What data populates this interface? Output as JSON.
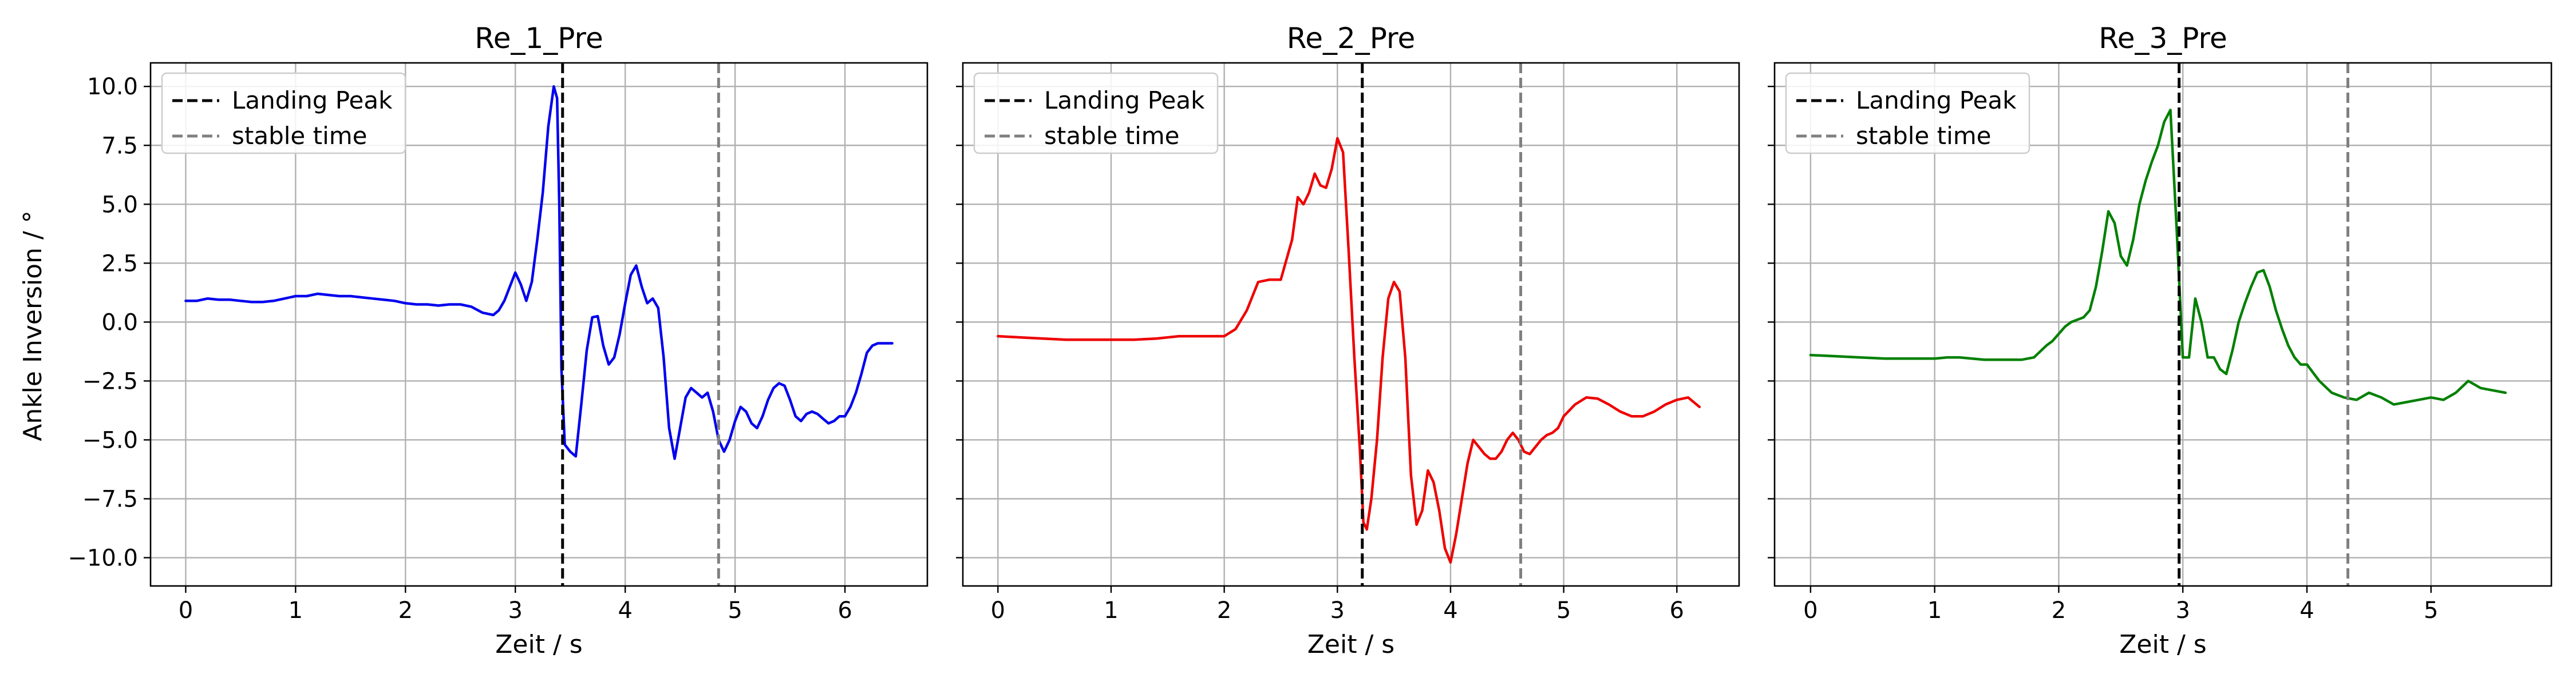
{
  "figure": {
    "shared_ylabel": "Ankle Inversion / °",
    "xlabel": "Zeit / s"
  },
  "legend": {
    "entries": [
      {
        "label": "Landing Peak",
        "color": "#000000",
        "style": "dashed"
      },
      {
        "label": "stable time",
        "color": "#808080",
        "style": "dashed"
      }
    ],
    "placement": "upper left"
  },
  "chart_data": [
    {
      "type": "line",
      "title": "Re_1_Pre",
      "xlabel": "Zeit / s",
      "ylabel": "Ankle Inversion / °",
      "xlim": [
        -0.32,
        6.75
      ],
      "ylim": [
        -11.2,
        11.0
      ],
      "xticks": [
        0,
        1,
        2,
        3,
        4,
        5,
        6
      ],
      "yticks": [
        -10.0,
        -7.5,
        -5.0,
        -2.5,
        0.0,
        2.5,
        5.0,
        7.5,
        10.0
      ],
      "ytick_labels": [
        "−10.0",
        "−7.5",
        "−5.0",
        "−2.5",
        "0.0",
        "2.5",
        "5.0",
        "7.5",
        "10.0"
      ],
      "grid": true,
      "series": [
        {
          "color": "#0000ee",
          "x": [
            0,
            0.1,
            0.2,
            0.3,
            0.4,
            0.5,
            0.6,
            0.7,
            0.8,
            0.9,
            1.0,
            1.1,
            1.2,
            1.3,
            1.4,
            1.5,
            1.6,
            1.7,
            1.8,
            1.9,
            2.0,
            2.1,
            2.2,
            2.3,
            2.4,
            2.5,
            2.6,
            2.7,
            2.8,
            2.85,
            2.9,
            2.95,
            3.0,
            3.05,
            3.1,
            3.15,
            3.2,
            3.25,
            3.3,
            3.35,
            3.38,
            3.4,
            3.42,
            3.45,
            3.5,
            3.55,
            3.6,
            3.65,
            3.7,
            3.75,
            3.8,
            3.85,
            3.9,
            3.95,
            4.0,
            4.05,
            4.1,
            4.15,
            4.2,
            4.25,
            4.3,
            4.35,
            4.4,
            4.45,
            4.5,
            4.55,
            4.6,
            4.65,
            4.7,
            4.75,
            4.8,
            4.85,
            4.9,
            4.95,
            5.0,
            5.05,
            5.1,
            5.15,
            5.2,
            5.25,
            5.3,
            5.35,
            5.4,
            5.45,
            5.5,
            5.55,
            5.6,
            5.65,
            5.7,
            5.75,
            5.8,
            5.85,
            5.9,
            5.95,
            6.0,
            6.05,
            6.1,
            6.15,
            6.2,
            6.25,
            6.3,
            6.35,
            6.43
          ],
          "y": [
            0.9,
            0.9,
            1.0,
            0.95,
            0.95,
            0.9,
            0.85,
            0.85,
            0.9,
            1.0,
            1.1,
            1.1,
            1.2,
            1.15,
            1.1,
            1.1,
            1.05,
            1.0,
            0.95,
            0.9,
            0.8,
            0.75,
            0.75,
            0.7,
            0.75,
            0.75,
            0.65,
            0.4,
            0.3,
            0.5,
            0.9,
            1.5,
            2.1,
            1.6,
            0.9,
            1.7,
            3.5,
            5.5,
            8.3,
            10.0,
            9.5,
            5.0,
            -2.0,
            -5.2,
            -5.5,
            -5.7,
            -3.5,
            -1.2,
            0.2,
            0.25,
            -1.0,
            -1.8,
            -1.5,
            -0.5,
            0.8,
            2.0,
            2.4,
            1.5,
            0.8,
            1.0,
            0.6,
            -1.5,
            -4.5,
            -5.8,
            -4.5,
            -3.2,
            -2.8,
            -3.0,
            -3.2,
            -3.0,
            -3.8,
            -5.0,
            -5.5,
            -5.0,
            -4.2,
            -3.6,
            -3.8,
            -4.3,
            -4.5,
            -4.0,
            -3.3,
            -2.8,
            -2.6,
            -2.7,
            -3.3,
            -4.0,
            -4.2,
            -3.9,
            -3.8,
            -3.9,
            -4.1,
            -4.3,
            -4.2,
            -4.0,
            -4.0,
            -3.6,
            -3.0,
            -2.2,
            -1.3,
            -1.0,
            -0.9,
            -0.9,
            -0.9
          ]
        }
      ],
      "landing_peak_x": 3.43,
      "stable_time_x": 4.85
    },
    {
      "type": "line",
      "title": "Re_2_Pre",
      "xlabel": "Zeit / s",
      "ylabel": "",
      "xlim": [
        -0.31,
        6.55
      ],
      "ylim": [
        -11.2,
        11.0
      ],
      "xticks": [
        0,
        1,
        2,
        3,
        4,
        5,
        6
      ],
      "yticks": [
        -10.0,
        -7.5,
        -5.0,
        -2.5,
        0.0,
        2.5,
        5.0,
        7.5,
        10.0
      ],
      "grid": true,
      "series": [
        {
          "color": "#ee0000",
          "x": [
            0,
            0.2,
            0.4,
            0.6,
            0.8,
            1.0,
            1.2,
            1.4,
            1.6,
            1.8,
            2.0,
            2.1,
            2.2,
            2.3,
            2.4,
            2.5,
            2.6,
            2.65,
            2.7,
            2.75,
            2.8,
            2.85,
            2.9,
            2.95,
            3.0,
            3.05,
            3.1,
            3.15,
            3.2,
            3.23,
            3.26,
            3.3,
            3.35,
            3.4,
            3.45,
            3.5,
            3.55,
            3.6,
            3.65,
            3.7,
            3.75,
            3.8,
            3.85,
            3.9,
            3.95,
            4.0,
            4.05,
            4.1,
            4.15,
            4.2,
            4.25,
            4.3,
            4.35,
            4.4,
            4.45,
            4.5,
            4.55,
            4.6,
            4.65,
            4.7,
            4.75,
            4.8,
            4.85,
            4.9,
            4.95,
            5.0,
            5.1,
            5.2,
            5.3,
            5.4,
            5.5,
            5.6,
            5.7,
            5.8,
            5.9,
            6.0,
            6.1,
            6.2
          ],
          "y": [
            -0.6,
            -0.65,
            -0.7,
            -0.75,
            -0.75,
            -0.75,
            -0.75,
            -0.7,
            -0.6,
            -0.6,
            -0.6,
            -0.3,
            0.5,
            1.7,
            1.8,
            1.8,
            3.5,
            5.3,
            5.0,
            5.5,
            6.3,
            5.8,
            5.7,
            6.5,
            7.8,
            7.2,
            3.0,
            -1.5,
            -5.5,
            -8.5,
            -8.8,
            -7.5,
            -5.0,
            -1.5,
            1.0,
            1.7,
            1.3,
            -1.5,
            -6.5,
            -8.6,
            -8.0,
            -6.3,
            -6.8,
            -8.0,
            -9.6,
            -10.2,
            -9.0,
            -7.5,
            -6.0,
            -5.0,
            -5.3,
            -5.6,
            -5.8,
            -5.8,
            -5.5,
            -5.0,
            -4.7,
            -5.0,
            -5.5,
            -5.6,
            -5.3,
            -5.0,
            -4.8,
            -4.7,
            -4.5,
            -4.0,
            -3.5,
            -3.2,
            -3.25,
            -3.5,
            -3.8,
            -4.0,
            -4.0,
            -3.8,
            -3.5,
            -3.3,
            -3.2,
            -3.6
          ]
        }
      ],
      "landing_peak_x": 3.22,
      "stable_time_x": 4.62
    },
    {
      "type": "line",
      "title": "Re_3_Pre",
      "xlabel": "Zeit / s",
      "ylabel": "",
      "xlim": [
        -0.29,
        5.97
      ],
      "ylim": [
        -11.2,
        11.0
      ],
      "xticks": [
        0,
        1,
        2,
        3,
        4,
        5
      ],
      "yticks": [
        -10.0,
        -7.5,
        -5.0,
        -2.5,
        0.0,
        2.5,
        5.0,
        7.5,
        10.0
      ],
      "grid": true,
      "series": [
        {
          "color": "#008000",
          "x": [
            0,
            0.2,
            0.4,
            0.6,
            0.8,
            1.0,
            1.1,
            1.2,
            1.3,
            1.4,
            1.5,
            1.6,
            1.7,
            1.8,
            1.9,
            1.95,
            2.0,
            2.05,
            2.1,
            2.15,
            2.2,
            2.25,
            2.3,
            2.35,
            2.4,
            2.45,
            2.5,
            2.55,
            2.6,
            2.65,
            2.7,
            2.75,
            2.8,
            2.85,
            2.9,
            2.95,
            3.0,
            3.05,
            3.1,
            3.15,
            3.2,
            3.25,
            3.3,
            3.35,
            3.4,
            3.45,
            3.5,
            3.55,
            3.6,
            3.65,
            3.7,
            3.75,
            3.8,
            3.85,
            3.9,
            3.95,
            4.0,
            4.1,
            4.2,
            4.3,
            4.4,
            4.5,
            4.6,
            4.7,
            4.8,
            4.9,
            5.0,
            5.1,
            5.2,
            5.3,
            5.4,
            5.5,
            5.6
          ],
          "y": [
            -1.4,
            -1.45,
            -1.5,
            -1.55,
            -1.55,
            -1.55,
            -1.5,
            -1.5,
            -1.55,
            -1.6,
            -1.6,
            -1.6,
            -1.6,
            -1.5,
            -1.0,
            -0.8,
            -0.5,
            -0.2,
            0.0,
            0.1,
            0.2,
            0.5,
            1.5,
            3.0,
            4.7,
            4.2,
            2.8,
            2.4,
            3.5,
            5.0,
            6.0,
            6.8,
            7.5,
            8.5,
            9.0,
            4.0,
            -1.5,
            -1.5,
            1.0,
            0.0,
            -1.5,
            -1.5,
            -2.0,
            -2.2,
            -1.2,
            0.0,
            0.8,
            1.5,
            2.1,
            2.2,
            1.5,
            0.5,
            -0.3,
            -1.0,
            -1.5,
            -1.8,
            -1.8,
            -2.5,
            -3.0,
            -3.2,
            -3.3,
            -3.0,
            -3.2,
            -3.5,
            -3.4,
            -3.3,
            -3.2,
            -3.3,
            -3.0,
            -2.5,
            -2.8,
            -2.9,
            -3.0
          ]
        }
      ],
      "landing_peak_x": 2.97,
      "stable_time_x": 4.33
    }
  ]
}
